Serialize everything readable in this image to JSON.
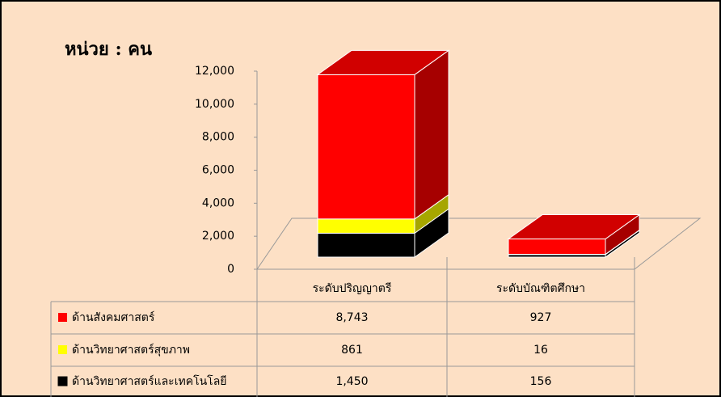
{
  "chart_data": {
    "type": "bar3d_stacked",
    "title": "หน่วย : คน",
    "categories": [
      "ระดับปริญญาตรี",
      "ระดับบัณฑิตศึกษา"
    ],
    "series": [
      {
        "name": "ด้านสังคมศาสตร์",
        "color": "#ff0000",
        "values": [
          8743,
          927
        ],
        "value_labels": [
          "8,743",
          "927"
        ]
      },
      {
        "name": "ด้านวิทยาศาสตร์สุขภาพ",
        "color": "#ffff00",
        "values": [
          861,
          16
        ],
        "value_labels": [
          "861",
          "16"
        ]
      },
      {
        "name": "ด้านวิทยาศาสตร์และเทคโนโลยี",
        "color": "#000000",
        "values": [
          1450,
          156
        ],
        "value_labels": [
          "1,450",
          "156"
        ]
      }
    ],
    "ylim": [
      0,
      12000
    ],
    "yticks": [
      0,
      {
        "value": 2000,
        "label": "2,000"
      },
      {
        "value": 4000,
        "label": "4,000"
      },
      {
        "value": 6000,
        "label": "6,000"
      },
      {
        "value": 8000,
        "label": "8,000"
      },
      {
        "value": 10000,
        "label": "10,000"
      },
      {
        "value": 12000,
        "label": "12,000"
      }
    ]
  }
}
